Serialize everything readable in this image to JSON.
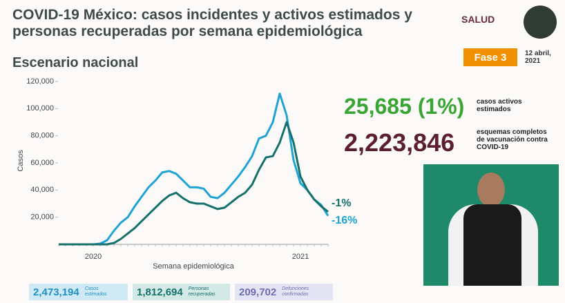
{
  "header": {
    "title_lines": [
      "COVID-19 México: casos incidentes y activos estimados y",
      "personas recuperadas por semana epidemiológica"
    ],
    "subtitle": "Escenario nacional",
    "logo": "SALUD",
    "phase": "Fase 3",
    "date_lines": [
      "12 abril,",
      "2021"
    ]
  },
  "chart_data": {
    "type": "line",
    "xlabel": "Semana epidemiológica",
    "ylabel": "Casos",
    "categories": [
      null,
      null,
      null,
      null,
      null,
      "2020",
      null,
      null,
      null,
      null,
      null,
      null,
      null,
      null,
      null,
      null,
      null,
      null,
      null,
      null,
      null,
      null,
      null,
      null,
      null,
      null,
      null,
      null,
      null,
      null,
      null,
      null,
      null,
      null,
      null,
      "2021",
      null,
      null,
      null,
      null
    ],
    "series": [
      {
        "color": "#1fa3d6",
        "values": [
          0,
          0,
          0,
          0,
          0,
          0,
          500,
          3000,
          10000,
          16000,
          20000,
          28000,
          35000,
          42000,
          47000,
          53000,
          54000,
          52000,
          47000,
          42000,
          42000,
          41000,
          35000,
          34000,
          38000,
          44000,
          50000,
          57000,
          65000,
          78000,
          80000,
          90000,
          111000,
          95000,
          62000,
          45000,
          40000,
          33000,
          29000,
          21000
        ]
      },
      {
        "color": "#16706a",
        "values": [
          0,
          0,
          0,
          0,
          0,
          0,
          0,
          0,
          1000,
          4000,
          8000,
          12000,
          17000,
          22000,
          27000,
          32000,
          36000,
          38000,
          34000,
          31000,
          30000,
          30000,
          28000,
          26000,
          27000,
          31000,
          35000,
          38000,
          44000,
          55000,
          64000,
          65000,
          75000,
          90000,
          75000,
          50000,
          40000,
          33000,
          28000,
          24000
        ]
      }
    ],
    "ylim": [
      0,
      120000
    ],
    "yticks": [
      {
        "value": 20000,
        "label": "20,000"
      },
      {
        "value": 40000,
        "label": "40,000"
      },
      {
        "value": 60000,
        "label": "60,000"
      },
      {
        "value": 80000,
        "label": "80,000"
      },
      {
        "value": 100000,
        "label": "100,000"
      },
      {
        "value": 120000,
        "label": "120,000"
      }
    ],
    "annotations": [
      {
        "text": "-1%",
        "color": "#16706a"
      },
      {
        "text": "-16%",
        "color": "#1fa3d6"
      }
    ]
  },
  "indicators": [
    {
      "value": "25,685 (1%)",
      "color": "#3aa535",
      "label_lines": [
        "casos activos",
        "estimados"
      ]
    },
    {
      "value": "2,223,846",
      "color": "#5b1f2e",
      "label_lines": [
        "esquemas completos",
        "de vacunación contra",
        "COVID-19"
      ]
    }
  ],
  "summary": [
    {
      "value": "2,473,194",
      "color": "#1f8fc4",
      "bg": "#cfeaf5",
      "label_lines": [
        "Casos",
        "estimados"
      ]
    },
    {
      "value": "1,812,694",
      "color": "#16706a",
      "bg": "#d3e9e5",
      "label_lines": [
        "Personas",
        "recuperadas"
      ]
    },
    {
      "value": "209,702",
      "color": "#6c6cb0",
      "bg": "#e4e4f4",
      "label_lines": [
        "Defunciones",
        "confirmadas"
      ]
    }
  ]
}
